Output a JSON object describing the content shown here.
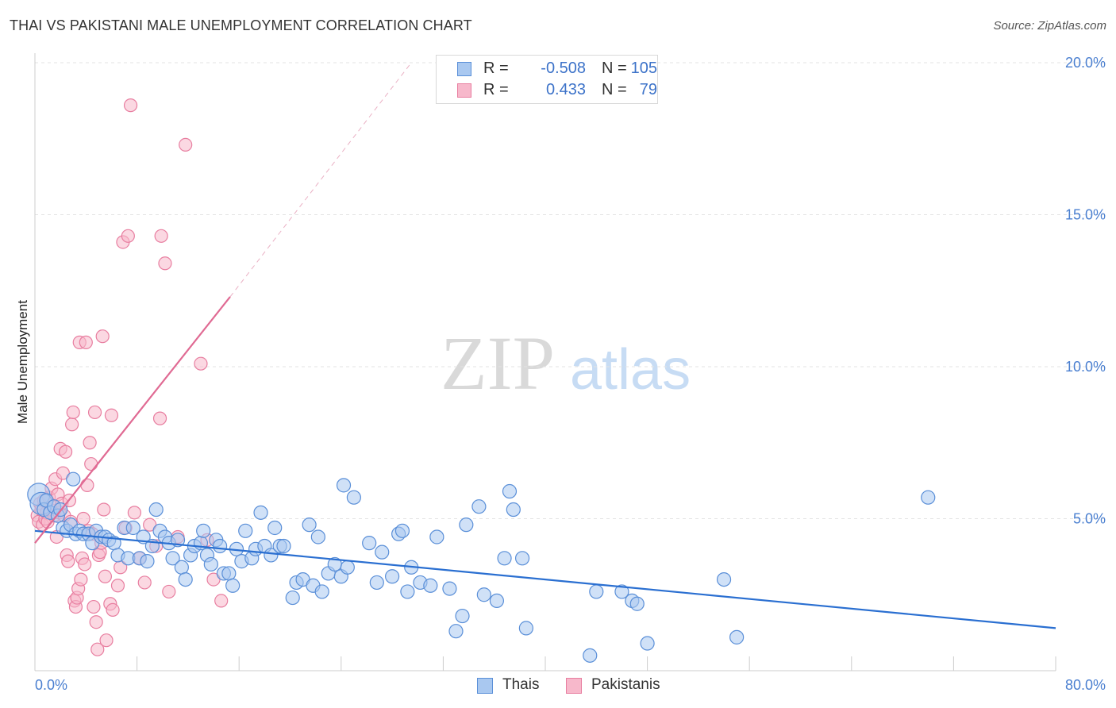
{
  "header": {
    "title": "THAI VS PAKISTANI MALE UNEMPLOYMENT CORRELATION CHART",
    "source": "Source: ZipAtlas.com"
  },
  "colors": {
    "thai_fill": "#a9c8f0",
    "thai_stroke": "#5a8fd8",
    "thai_line": "#2a6fd1",
    "pak_fill": "#f7b8cb",
    "pak_stroke": "#e87ea0",
    "pak_line": "#e06a93",
    "axis_text": "#4a7fd0",
    "grid": "#e3e3e3"
  },
  "legend": {
    "rows": [
      {
        "r_label": "R =",
        "r_value": "-0.508",
        "n_label": "N =",
        "n_value": "105"
      },
      {
        "r_label": "R =",
        "r_value": "0.433",
        "n_label": "N =",
        "n_value": "79"
      }
    ]
  },
  "bottom_legend": [
    "Thais",
    "Pakistanis"
  ],
  "watermark": {
    "zip": "ZIP",
    "atlas": "atlas"
  },
  "chart_data": {
    "type": "scatter",
    "title": "THAI VS PAKISTANI MALE UNEMPLOYMENT CORRELATION CHART",
    "xlabel": "",
    "ylabel": "Male Unemployment",
    "xlim": [
      0,
      80
    ],
    "ylim": [
      0,
      20
    ],
    "x_tick_labels": [
      "0.0%",
      "80.0%"
    ],
    "y_ticks": [
      5,
      10,
      15,
      20
    ],
    "y_tick_labels": [
      "5.0%",
      "10.0%",
      "15.0%",
      "20.0%"
    ],
    "grid": true,
    "legend_position": "top-center",
    "series": [
      {
        "name": "Thais",
        "r": -0.508,
        "n": 105,
        "trend": {
          "x": [
            0,
            80
          ],
          "y": [
            4.6,
            1.4
          ]
        },
        "points": [
          [
            0.3,
            5.8
          ],
          [
            0.5,
            5.5
          ],
          [
            0.7,
            5.3
          ],
          [
            0.9,
            5.6
          ],
          [
            1.2,
            5.2
          ],
          [
            1.5,
            5.4
          ],
          [
            1.8,
            5.1
          ],
          [
            2.0,
            5.3
          ],
          [
            2.2,
            4.7
          ],
          [
            2.5,
            4.6
          ],
          [
            2.8,
            4.8
          ],
          [
            3.0,
            6.3
          ],
          [
            3.2,
            4.5
          ],
          [
            3.5,
            4.6
          ],
          [
            3.8,
            4.5
          ],
          [
            4.2,
            4.5
          ],
          [
            4.5,
            4.2
          ],
          [
            4.8,
            4.6
          ],
          [
            5.2,
            4.4
          ],
          [
            5.5,
            4.4
          ],
          [
            5.8,
            4.3
          ],
          [
            6.2,
            4.2
          ],
          [
            6.5,
            3.8
          ],
          [
            7.0,
            4.7
          ],
          [
            7.3,
            3.7
          ],
          [
            7.7,
            4.7
          ],
          [
            8.2,
            3.7
          ],
          [
            8.5,
            4.4
          ],
          [
            8.8,
            3.6
          ],
          [
            9.2,
            4.1
          ],
          [
            9.5,
            5.3
          ],
          [
            9.8,
            4.6
          ],
          [
            10.2,
            4.4
          ],
          [
            10.5,
            4.2
          ],
          [
            10.8,
            3.7
          ],
          [
            11.2,
            4.3
          ],
          [
            11.5,
            3.4
          ],
          [
            11.8,
            3.0
          ],
          [
            12.2,
            3.8
          ],
          [
            12.5,
            4.1
          ],
          [
            13.0,
            4.2
          ],
          [
            13.2,
            4.6
          ],
          [
            13.5,
            3.8
          ],
          [
            13.8,
            3.5
          ],
          [
            14.2,
            4.3
          ],
          [
            14.5,
            4.1
          ],
          [
            14.8,
            3.2
          ],
          [
            15.2,
            3.2
          ],
          [
            15.5,
            2.8
          ],
          [
            15.8,
            4.0
          ],
          [
            16.2,
            3.6
          ],
          [
            16.5,
            4.6
          ],
          [
            17.0,
            3.7
          ],
          [
            17.3,
            4.0
          ],
          [
            17.7,
            5.2
          ],
          [
            18.0,
            4.1
          ],
          [
            18.5,
            3.8
          ],
          [
            18.8,
            4.7
          ],
          [
            19.2,
            4.1
          ],
          [
            19.5,
            4.1
          ],
          [
            20.2,
            2.4
          ],
          [
            20.5,
            2.9
          ],
          [
            21.0,
            3.0
          ],
          [
            21.5,
            4.8
          ],
          [
            21.8,
            2.8
          ],
          [
            22.2,
            4.4
          ],
          [
            22.5,
            2.6
          ],
          [
            23.0,
            3.2
          ],
          [
            23.5,
            3.5
          ],
          [
            24.0,
            3.1
          ],
          [
            24.2,
            6.1
          ],
          [
            24.5,
            3.4
          ],
          [
            25.0,
            5.7
          ],
          [
            26.2,
            4.2
          ],
          [
            26.8,
            2.9
          ],
          [
            27.2,
            3.9
          ],
          [
            28.0,
            3.1
          ],
          [
            28.5,
            4.5
          ],
          [
            28.8,
            4.6
          ],
          [
            29.5,
            3.4
          ],
          [
            29.2,
            2.6
          ],
          [
            30.2,
            2.9
          ],
          [
            31.0,
            2.8
          ],
          [
            31.5,
            4.4
          ],
          [
            32.5,
            2.7
          ],
          [
            33.0,
            1.3
          ],
          [
            33.5,
            1.8
          ],
          [
            33.8,
            4.8
          ],
          [
            34.8,
            5.4
          ],
          [
            35.2,
            2.5
          ],
          [
            36.2,
            2.3
          ],
          [
            36.8,
            3.7
          ],
          [
            37.2,
            5.9
          ],
          [
            37.5,
            5.3
          ],
          [
            38.2,
            3.7
          ],
          [
            38.5,
            1.4
          ],
          [
            43.5,
            0.5
          ],
          [
            44.0,
            2.6
          ],
          [
            46.0,
            2.6
          ],
          [
            46.8,
            2.3
          ],
          [
            47.2,
            2.2
          ],
          [
            48.0,
            0.9
          ],
          [
            54.0,
            3.0
          ],
          [
            55.0,
            1.1
          ],
          [
            70.0,
            5.7
          ]
        ]
      },
      {
        "name": "Pakistanis",
        "r": 0.433,
        "n": 79,
        "trend": {
          "x": [
            0,
            15.3
          ],
          "y": [
            4.2,
            12.3
          ],
          "extended": {
            "x": [
              15.3,
              29.5
            ],
            "y": [
              12.3,
              20.0
            ]
          }
        },
        "points": [
          [
            0.2,
            5.1
          ],
          [
            0.3,
            4.9
          ],
          [
            0.4,
            5.5
          ],
          [
            0.5,
            5.3
          ],
          [
            0.6,
            4.8
          ],
          [
            0.7,
            5.6
          ],
          [
            0.8,
            5.0
          ],
          [
            0.9,
            5.2
          ],
          [
            1.0,
            4.9
          ],
          [
            1.1,
            5.7
          ],
          [
            1.2,
            5.3
          ],
          [
            1.3,
            6.0
          ],
          [
            1.4,
            5.4
          ],
          [
            1.5,
            5.1
          ],
          [
            1.6,
            6.3
          ],
          [
            1.7,
            4.4
          ],
          [
            1.8,
            5.8
          ],
          [
            1.9,
            5.2
          ],
          [
            2.0,
            7.3
          ],
          [
            2.1,
            5.5
          ],
          [
            2.2,
            6.5
          ],
          [
            2.3,
            5.1
          ],
          [
            2.4,
            7.2
          ],
          [
            2.5,
            3.8
          ],
          [
            2.6,
            3.6
          ],
          [
            2.7,
            5.6
          ],
          [
            2.8,
            4.9
          ],
          [
            2.9,
            8.1
          ],
          [
            3.0,
            8.5
          ],
          [
            3.1,
            2.3
          ],
          [
            3.2,
            2.1
          ],
          [
            3.3,
            2.4
          ],
          [
            3.4,
            2.7
          ],
          [
            3.5,
            10.8
          ],
          [
            3.6,
            3.0
          ],
          [
            3.7,
            3.7
          ],
          [
            3.8,
            5.0
          ],
          [
            3.9,
            3.5
          ],
          [
            4.0,
            10.8
          ],
          [
            4.1,
            6.1
          ],
          [
            4.2,
            4.6
          ],
          [
            4.3,
            7.5
          ],
          [
            4.4,
            6.8
          ],
          [
            4.5,
            4.5
          ],
          [
            4.6,
            2.1
          ],
          [
            4.7,
            8.5
          ],
          [
            4.8,
            1.6
          ],
          [
            4.9,
            0.7
          ],
          [
            5.0,
            3.8
          ],
          [
            5.1,
            3.9
          ],
          [
            5.2,
            4.2
          ],
          [
            5.3,
            11.0
          ],
          [
            5.4,
            5.3
          ],
          [
            5.5,
            3.1
          ],
          [
            5.6,
            1.0
          ],
          [
            5.9,
            2.2
          ],
          [
            6.0,
            8.4
          ],
          [
            6.1,
            2.0
          ],
          [
            6.5,
            2.8
          ],
          [
            6.7,
            3.4
          ],
          [
            6.9,
            14.1
          ],
          [
            7.1,
            4.7
          ],
          [
            7.3,
            14.3
          ],
          [
            7.5,
            18.6
          ],
          [
            7.8,
            5.2
          ],
          [
            8.2,
            3.7
          ],
          [
            8.6,
            2.9
          ],
          [
            9.0,
            4.8
          ],
          [
            9.5,
            4.1
          ],
          [
            9.8,
            8.3
          ],
          [
            9.9,
            14.3
          ],
          [
            10.2,
            13.4
          ],
          [
            10.5,
            2.6
          ],
          [
            11.2,
            4.4
          ],
          [
            11.8,
            17.3
          ],
          [
            13.0,
            10.1
          ],
          [
            13.5,
            4.3
          ],
          [
            14.0,
            3.0
          ],
          [
            14.6,
            2.3
          ]
        ]
      }
    ]
  }
}
